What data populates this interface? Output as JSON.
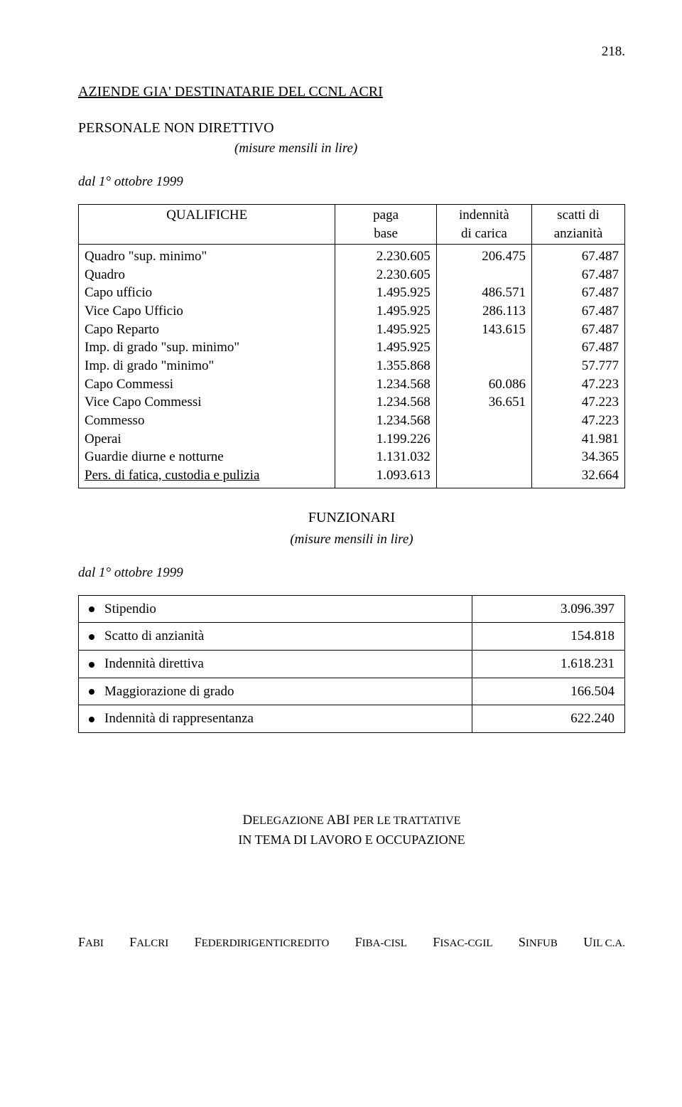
{
  "page_number": "218.",
  "heading_main": "AZIENDE GIA' DESTINATARIE DEL CCNL ACRI",
  "heading_sub": "PERSONALE NON DIRETTIVO",
  "measure_note": "(misure mensili in lire)",
  "date_line": "dal 1° ottobre 1999",
  "table1": {
    "col_qualifiche": "QUALIFICHE",
    "col_paga_l1": "paga",
    "col_paga_l2": "base",
    "col_ind_l1": "indennità",
    "col_ind_l2": "di carica",
    "col_scatti_l1": "scatti di",
    "col_scatti_l2": "anzianità",
    "rows": [
      {
        "q": "Quadro \"sup. minimo\"",
        "paga": "2.230.605",
        "ind": "206.475",
        "sc": "67.487"
      },
      {
        "q": "Quadro",
        "paga": "2.230.605",
        "ind": "",
        "sc": "67.487"
      },
      {
        "q": "Capo ufficio",
        "paga": "1.495.925",
        "ind": "486.571",
        "sc": "67.487"
      },
      {
        "q": "Vice Capo Ufficio",
        "paga": "1.495.925",
        "ind": "286.113",
        "sc": "67.487"
      },
      {
        "q": "Capo Reparto",
        "paga": "1.495.925",
        "ind": "143.615",
        "sc": "67.487"
      },
      {
        "q": "Imp. di grado \"sup. minimo\"",
        "paga": "1.495.925",
        "ind": "",
        "sc": "67.487"
      },
      {
        "q": "Imp. di grado \"minimo\"",
        "paga": "1.355.868",
        "ind": "",
        "sc": "57.777"
      },
      {
        "q": "Capo Commessi",
        "paga": "1.234.568",
        "ind": "60.086",
        "sc": "47.223"
      },
      {
        "q": "Vice Capo Commessi",
        "paga": "1.234.568",
        "ind": "36.651",
        "sc": "47.223"
      },
      {
        "q": "Commesso",
        "paga": "1.234.568",
        "ind": "",
        "sc": "47.223"
      },
      {
        "q": "Operai",
        "paga": "1.199.226",
        "ind": "",
        "sc": "41.981"
      },
      {
        "q": "Guardie diurne e notturne",
        "paga": "1.131.032",
        "ind": "",
        "sc": "34.365"
      },
      {
        "q": "Pers. di fatica, custodia e pulizia",
        "paga": "1.093.613",
        "ind": "",
        "sc": "32.664"
      }
    ]
  },
  "section2_title": "FUNZIONARI",
  "section2_note": "(misure mensili in lire)",
  "date_line2": "dal 1° ottobre 1999",
  "summary": {
    "rows": [
      {
        "label": "Stipendio",
        "value": "3.096.397"
      },
      {
        "label": "Scatto di anzianità",
        "value": "154.818"
      },
      {
        "label": "Indennità direttiva",
        "value": "1.618.231"
      },
      {
        "label": "Maggiorazione di grado",
        "value": "166.504"
      },
      {
        "label": "Indennità di rappresentanza",
        "value": "622.240"
      }
    ]
  },
  "delegation_l1_a": "D",
  "delegation_l1_b": "ELEGAZIONE ",
  "delegation_l1_c": "ABI ",
  "delegation_l1_d": "PER LE TRATTATIVE",
  "delegation_l2": "IN TEMA DI LAVORO E OCCUPAZIONE",
  "footer": {
    "items": [
      "FABI",
      "FALCRI",
      "FEDERDIRIGENTICREDITO",
      "FIBA-CISL",
      "FISAC-CGIL",
      "SINFUB",
      "UIL C.A."
    ]
  },
  "colors": {
    "text": "#000000",
    "background": "#ffffff",
    "border": "#000000"
  },
  "typography": {
    "body_family": "Times New Roman",
    "body_size_pt": 14,
    "title_size_pt": 15
  }
}
